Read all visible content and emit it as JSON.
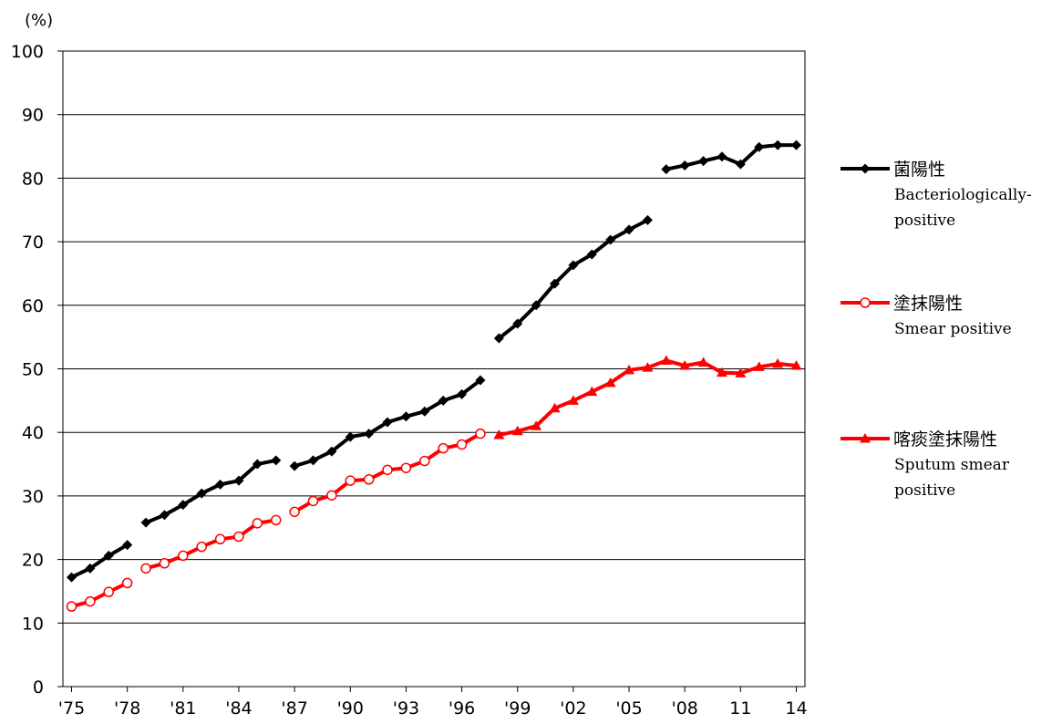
{
  "chart_data": {
    "type": "line",
    "unit_label": "(%)",
    "ylim": [
      0,
      100
    ],
    "yticks": [
      0,
      10,
      20,
      30,
      40,
      50,
      60,
      70,
      80,
      90,
      100
    ],
    "grid": true,
    "legend_position": "right",
    "x": [
      1975,
      1976,
      1977,
      1978,
      1979,
      1980,
      1981,
      1982,
      1983,
      1984,
      1985,
      1986,
      1987,
      1988,
      1989,
      1990,
      1991,
      1992,
      1993,
      1994,
      1995,
      1996,
      1997,
      1998,
      1999,
      2000,
      2001,
      2002,
      2003,
      2004,
      2005,
      2006,
      2007,
      2008,
      2009,
      2010,
      2011,
      2012,
      2013,
      2014
    ],
    "xticks": [
      {
        "year": 1975,
        "label": "'75"
      },
      {
        "year": 1978,
        "label": "'78"
      },
      {
        "year": 1981,
        "label": "'81"
      },
      {
        "year": 1984,
        "label": "'84"
      },
      {
        "year": 1987,
        "label": "'87"
      },
      {
        "year": 1990,
        "label": "'90"
      },
      {
        "year": 1993,
        "label": "'93"
      },
      {
        "year": 1996,
        "label": "'96"
      },
      {
        "year": 1999,
        "label": "'99"
      },
      {
        "year": 2002,
        "label": "'02"
      },
      {
        "year": 2005,
        "label": "'05"
      },
      {
        "year": 2008,
        "label": "'08"
      },
      {
        "year": 2011,
        "label": "11"
      },
      {
        "year": 2014,
        "label": "14"
      }
    ],
    "series": [
      {
        "name": "菌陽性",
        "name_en": "Bacteriologically-positive",
        "name_en_lines": [
          "Bacteriologically-",
          "positive"
        ],
        "color": "#000000",
        "marker": "diamond",
        "segments": [
          {
            "x": [
              1975,
              1976,
              1977,
              1978
            ],
            "y": [
              17.2,
              18.6,
              20.6,
              22.3
            ]
          },
          {
            "x": [
              1979,
              1980,
              1981,
              1982,
              1983,
              1984,
              1985,
              1986
            ],
            "y": [
              25.8,
              27.0,
              28.6,
              30.4,
              31.8,
              32.4,
              35.0,
              35.6
            ]
          },
          {
            "x": [
              1987,
              1988,
              1989,
              1990,
              1991,
              1992,
              1993,
              1994,
              1995,
              1996,
              1997
            ],
            "y": [
              34.7,
              35.6,
              37.0,
              39.3,
              39.8,
              41.6,
              42.5,
              43.3,
              45.0,
              46.0,
              48.2
            ]
          },
          {
            "x": [
              1998,
              1999,
              2000,
              2001,
              2002,
              2003,
              2004,
              2005,
              2006
            ],
            "y": [
              54.8,
              57.1,
              60.0,
              63.4,
              66.3,
              68.0,
              70.3,
              71.9,
              73.4
            ]
          },
          {
            "x": [
              2007,
              2008,
              2009,
              2010,
              2011,
              2012,
              2013,
              2014
            ],
            "y": [
              81.4,
              82.0,
              82.7,
              83.4,
              82.2,
              84.9,
              85.2,
              85.2
            ]
          }
        ]
      },
      {
        "name": "塗抹陽性",
        "name_en": "Smear positive",
        "name_en_lines": [
          "Smear positive"
        ],
        "color": "#ff0000",
        "marker": "open-circle",
        "segments": [
          {
            "x": [
              1975,
              1976,
              1977,
              1978
            ],
            "y": [
              12.6,
              13.4,
              14.9,
              16.3
            ]
          },
          {
            "x": [
              1979,
              1980,
              1981,
              1982,
              1983,
              1984,
              1985,
              1986
            ],
            "y": [
              18.6,
              19.4,
              20.6,
              22.0,
              23.2,
              23.6,
              25.7,
              26.2
            ]
          },
          {
            "x": [
              1987,
              1988,
              1989,
              1990,
              1991,
              1992,
              1993,
              1994,
              1995,
              1996,
              1997
            ],
            "y": [
              27.5,
              29.2,
              30.1,
              32.4,
              32.6,
              34.1,
              34.4,
              35.5,
              37.5,
              38.1,
              39.8
            ]
          }
        ]
      },
      {
        "name": "喀痰塗抹陽性",
        "name_en": "Sputum smear positive",
        "name_en_lines": [
          "Sputum smear",
          "positive"
        ],
        "color": "#ff0000",
        "marker": "triangle",
        "segments": [
          {
            "x": [
              1998,
              1999,
              2000,
              2001,
              2002,
              2003,
              2004,
              2005,
              2006,
              2007,
              2008,
              2009,
              2010,
              2011,
              2012,
              2013,
              2014
            ],
            "y": [
              39.6,
              40.2,
              41.0,
              43.8,
              45.0,
              46.4,
              47.8,
              49.8,
              50.2,
              51.3,
              50.5,
              51.0,
              49.4,
              49.3,
              50.3,
              50.8,
              50.5
            ]
          }
        ]
      }
    ]
  }
}
